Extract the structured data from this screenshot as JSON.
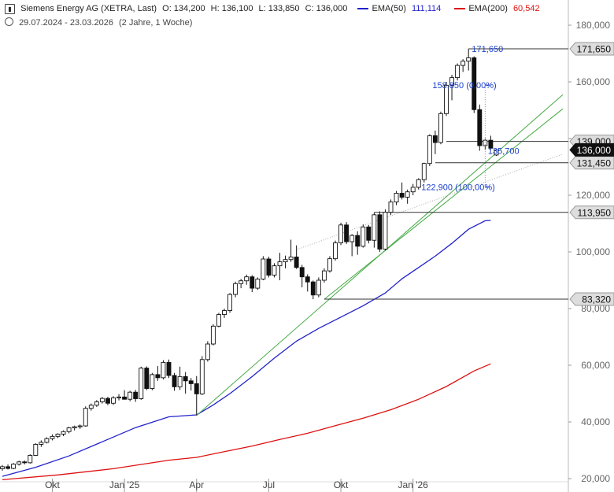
{
  "header": {
    "instrument": "Siemens Energy AG (XETRA, Last)",
    "open": "O: 134,200",
    "high": "H: 136,100",
    "low": "L: 133,850",
    "close": "C: 136,000",
    "ema50_label": "EMA(50)",
    "ema50_value": "111,114",
    "ema200_label": "EMA(200)",
    "ema200_value": "60,542",
    "date_range": "29.07.2024 - 23.03.2026",
    "period": "(2 Jahre, 1 Woche)"
  },
  "colors": {
    "ema50": "#2222cc",
    "ema200": "#dd1111",
    "trend": "#44aa44",
    "fib": "#1a3fcc",
    "axis": "#888888"
  },
  "chart_data": {
    "type": "candlestick",
    "ylim": [
      20000,
      185000
    ],
    "yticks": [
      {
        "v": 20000,
        "label": "20,000"
      },
      {
        "v": 40000,
        "label": "40,000"
      },
      {
        "v": 60000,
        "label": "60,000"
      },
      {
        "v": 80000,
        "label": "80,000"
      },
      {
        "v": 100000,
        "label": "100,000"
      },
      {
        "v": 120000,
        "label": "120,000"
      },
      {
        "v": 140000,
        "label": "140,000"
      },
      {
        "v": 160000,
        "label": "160,000"
      },
      {
        "v": 180000,
        "label": "180,000"
      }
    ],
    "xticks": [
      {
        "i": 9,
        "label": "Okt"
      },
      {
        "i": 22,
        "label": "Jan '25"
      },
      {
        "i": 35,
        "label": "Apr"
      },
      {
        "i": 48,
        "label": "Jul"
      },
      {
        "i": 61,
        "label": "Okt"
      },
      {
        "i": 74,
        "label": "Jan '26"
      }
    ],
    "candles": [
      [
        23.5,
        24.8,
        22.8,
        24.2
      ],
      [
        24.2,
        25.0,
        23.2,
        23.6
      ],
      [
        23.6,
        25.5,
        23.3,
        25.1
      ],
      [
        25.1,
        26.3,
        24.6,
        25.9
      ],
      [
        25.9,
        26.4,
        25.0,
        25.6
      ],
      [
        25.6,
        28.6,
        25.3,
        28.2
      ],
      [
        28.2,
        32.5,
        28.0,
        32.1
      ],
      [
        32.1,
        33.5,
        31.2,
        32.8
      ],
      [
        32.8,
        34.6,
        32.4,
        34.1
      ],
      [
        34.1,
        35.6,
        33.5,
        34.9
      ],
      [
        34.9,
        36.0,
        34.3,
        35.7
      ],
      [
        35.7,
        37.0,
        35.0,
        36.6
      ],
      [
        36.6,
        38.3,
        36.0,
        37.9
      ],
      [
        37.9,
        38.7,
        37.0,
        38.3
      ],
      [
        38.3,
        39.1,
        37.6,
        38.6
      ],
      [
        38.6,
        45.5,
        38.3,
        44.8
      ],
      [
        44.8,
        46.5,
        44.0,
        45.9
      ],
      [
        45.9,
        47.7,
        45.3,
        47.1
      ],
      [
        47.1,
        48.8,
        46.5,
        48.3
      ],
      [
        48.3,
        48.9,
        45.9,
        46.6
      ],
      [
        46.6,
        49.1,
        46.0,
        48.5
      ],
      [
        48.5,
        49.8,
        47.6,
        48.8
      ],
      [
        48.8,
        51.2,
        48.2,
        48.0
      ],
      [
        48.0,
        51.0,
        47.3,
        50.5
      ],
      [
        50.5,
        51.3,
        47.1,
        48.2
      ],
      [
        48.2,
        59.5,
        47.8,
        59.0
      ],
      [
        59.0,
        59.6,
        51.2,
        51.8
      ],
      [
        51.8,
        57.3,
        51.2,
        56.7
      ],
      [
        56.7,
        59.7,
        54.5,
        55.6
      ],
      [
        55.6,
        61.8,
        55.0,
        61.0
      ],
      [
        61.0,
        62.0,
        55.5,
        56.4
      ],
      [
        56.4,
        57.3,
        51.0,
        52.4
      ],
      [
        52.4,
        59.5,
        51.3,
        56.0
      ],
      [
        56.0,
        57.6,
        50.0,
        54.5
      ],
      [
        54.5,
        55.5,
        51.1,
        53.5
      ],
      [
        53.5,
        56.2,
        42.3,
        49.9
      ],
      [
        49.9,
        63.2,
        49.5,
        62.0
      ],
      [
        62.0,
        68.5,
        61.3,
        67.5
      ],
      [
        67.5,
        74.5,
        67.0,
        73.8
      ],
      [
        73.8,
        78.5,
        73.4,
        77.9
      ],
      [
        77.9,
        80.0,
        76.7,
        79.3
      ],
      [
        79.3,
        85.5,
        78.5,
        85.0
      ],
      [
        85.0,
        89.5,
        84.0,
        88.8
      ],
      [
        88.8,
        90.5,
        87.2,
        89.8
      ],
      [
        89.8,
        92.0,
        88.4,
        91.2
      ],
      [
        91.2,
        91.8,
        85.8,
        87.2
      ],
      [
        87.2,
        91.0,
        86.6,
        90.4
      ],
      [
        90.4,
        98.5,
        90.0,
        97.5
      ],
      [
        97.5,
        98.3,
        91.0,
        91.8
      ],
      [
        91.8,
        96.0,
        91.0,
        95.1
      ],
      [
        95.1,
        99.7,
        90.0,
        96.5
      ],
      [
        96.5,
        98.7,
        94.2,
        97.3
      ],
      [
        97.3,
        104.3,
        96.5,
        98.2
      ],
      [
        98.2,
        102.3,
        94.0,
        94.5
      ],
      [
        94.5,
        95.4,
        87.5,
        91.2
      ],
      [
        91.2,
        92.1,
        86.0,
        89.4
      ],
      [
        89.4,
        89.9,
        83.3,
        84.8
      ],
      [
        84.8,
        91.0,
        84.0,
        90.0
      ],
      [
        90.0,
        94.2,
        89.2,
        93.3
      ],
      [
        93.3,
        98.5,
        92.7,
        97.6
      ],
      [
        97.6,
        104.0,
        96.9,
        103.2
      ],
      [
        103.2,
        110.3,
        102.4,
        109.5
      ],
      [
        109.5,
        110.5,
        102.8,
        103.6
      ],
      [
        103.6,
        106.3,
        98.5,
        105.8
      ],
      [
        105.8,
        107.3,
        99.0,
        102.0
      ],
      [
        102.0,
        109.7,
        101.5,
        108.8
      ],
      [
        108.8,
        109.5,
        103.0,
        104.1
      ],
      [
        104.1,
        113.9,
        101.5,
        113.1
      ],
      [
        113.1,
        114.3,
        100.0,
        101.0
      ],
      [
        101.0,
        115.0,
        100.5,
        114.0
      ],
      [
        114.0,
        118.5,
        113.0,
        117.6
      ],
      [
        117.6,
        121.5,
        116.5,
        120.7
      ],
      [
        120.7,
        124.5,
        118.5,
        119.3
      ],
      [
        119.3,
        122.0,
        117.0,
        121.2
      ],
      [
        121.2,
        124.0,
        120.0,
        122.8
      ],
      [
        122.8,
        126.0,
        122.0,
        125.5
      ],
      [
        125.5,
        131.5,
        124.5,
        131.2
      ],
      [
        131.2,
        141.5,
        130.3,
        141.0
      ],
      [
        141.0,
        142.8,
        134.5,
        138.6
      ],
      [
        138.6,
        149.5,
        138.0,
        148.8
      ],
      [
        148.8,
        160.0,
        148.0,
        158.8
      ],
      [
        158.8,
        162.5,
        153.5,
        161.5
      ],
      [
        161.5,
        166.5,
        160.5,
        165.8
      ],
      [
        165.8,
        168.0,
        163.5,
        167.3
      ],
      [
        167.3,
        171.65,
        164.0,
        168.5
      ],
      [
        168.5,
        169.0,
        149.0,
        150.2
      ],
      [
        150.2,
        152.0,
        135.7,
        137.5
      ],
      [
        137.5,
        140.0,
        136.0,
        139.4
      ],
      [
        139.4,
        141.0,
        136.0,
        136.6
      ],
      [
        134.2,
        136.1,
        133.85,
        136.0
      ]
    ],
    "ema50": [
      [
        0,
        20.8
      ],
      [
        6,
        24.0
      ],
      [
        12,
        28.0
      ],
      [
        18,
        33.0
      ],
      [
        24,
        38.0
      ],
      [
        30,
        41.8
      ],
      [
        35,
        42.5
      ],
      [
        38,
        46.0
      ],
      [
        41,
        50.0
      ],
      [
        45,
        56.0
      ],
      [
        49,
        62.5
      ],
      [
        53,
        68.5
      ],
      [
        57,
        73.0
      ],
      [
        61,
        77.0
      ],
      [
        65,
        81.0
      ],
      [
        69,
        85.5
      ],
      [
        72,
        90.5
      ],
      [
        75,
        94.5
      ],
      [
        78,
        98.5
      ],
      [
        81,
        103.0
      ],
      [
        84,
        108.0
      ],
      [
        87,
        111.0
      ],
      [
        88,
        111.1
      ]
    ],
    "ema200": [
      [
        0,
        19.6
      ],
      [
        10,
        21.3
      ],
      [
        20,
        23.5
      ],
      [
        30,
        26.5
      ],
      [
        35,
        27.5
      ],
      [
        40,
        29.5
      ],
      [
        45,
        31.5
      ],
      [
        50,
        33.8
      ],
      [
        55,
        36.0
      ],
      [
        60,
        38.7
      ],
      [
        65,
        41.3
      ],
      [
        70,
        44.3
      ],
      [
        75,
        48.0
      ],
      [
        80,
        52.5
      ],
      [
        85,
        58.0
      ],
      [
        88,
        60.5
      ]
    ],
    "trendlines": [
      {
        "kind": "green",
        "from": [
          35,
          42.3
        ],
        "to": [
          101,
          155.5
        ]
      },
      {
        "kind": "green",
        "from": [
          58,
          83.3
        ],
        "to": [
          101,
          150.5
        ]
      },
      {
        "kind": "dotted",
        "from": [
          53,
          100.8
        ],
        "to": [
          101,
          134.5
        ]
      }
    ],
    "hlines": [
      {
        "v": 171.65,
        "from": 84,
        "price_label": "171,650"
      },
      {
        "v": 139.0,
        "from": 80,
        "price_label": "139,000"
      },
      {
        "v": 131.45,
        "from": 78,
        "price_label": "131,450"
      },
      {
        "v": 113.95,
        "from": 67,
        "price_label": "113,950"
      },
      {
        "v": 83.32,
        "from": 58,
        "price_label": "83,320"
      }
    ],
    "current_price": {
      "v": 136.0,
      "label": "136,000"
    },
    "annotations": [
      {
        "x": 84.6,
        "y": 171.65,
        "text": "171,650",
        "anchor": "start"
      },
      {
        "x": 77.5,
        "y": 158.85,
        "text": "158,850 (0,00%)",
        "anchor": "start"
      },
      {
        "x": 87.5,
        "y": 135.7,
        "text": "135,700",
        "anchor": "start"
      },
      {
        "x": 75.5,
        "y": 122.9,
        "text": "122,900 (100,00%)",
        "anchor": "start"
      }
    ],
    "fib_ticks": [
      {
        "x": 87,
        "y": 158.85
      },
      {
        "x": 87,
        "y": 122.9
      }
    ]
  }
}
